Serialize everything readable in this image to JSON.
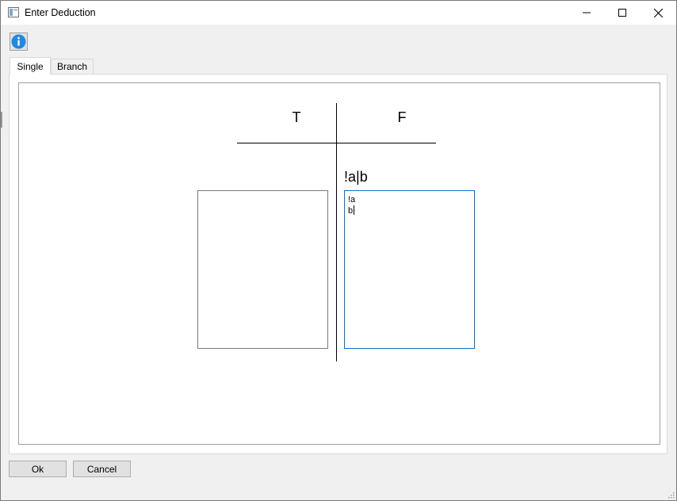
{
  "window": {
    "title": "Enter Deduction"
  },
  "toolbar": {
    "info_icon": "info-icon"
  },
  "tabs": [
    {
      "label": "Single",
      "active": true
    },
    {
      "label": "Branch",
      "active": false
    }
  ],
  "table": {
    "true_header": "T",
    "false_header": "F",
    "formula": "!a|b",
    "true_box_text": "",
    "false_box_text": "!a\nb"
  },
  "footer": {
    "ok_label": "Ok",
    "cancel_label": "Cancel"
  },
  "colors": {
    "focus_border": "#0a70c8",
    "info_icon": "#1e88e5"
  }
}
